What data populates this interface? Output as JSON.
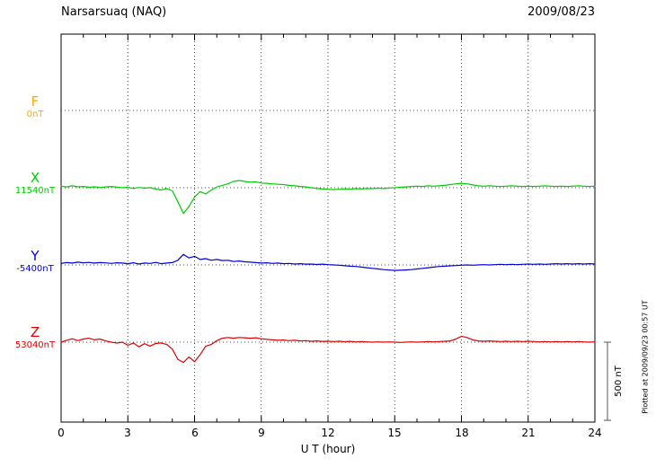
{
  "header": {
    "station": "Narsarsuaq (NAQ)",
    "date": "2009/08/23"
  },
  "channels": [
    {
      "letter": "F",
      "baseline_label": "0nT",
      "color": "#FFA500"
    },
    {
      "letter": "X",
      "baseline_label": "11540nT",
      "color": "#00CC00"
    },
    {
      "letter": "Y",
      "baseline_label": "-5400nT",
      "color": "#0000DD"
    },
    {
      "letter": "Z",
      "baseline_label": "53040nT",
      "color": "#DD0000"
    }
  ],
  "xaxis": {
    "label": "U T (hour)",
    "ticks": [
      0,
      3,
      6,
      9,
      12,
      15,
      18,
      21,
      24
    ],
    "min": 0,
    "max": 24
  },
  "scale_bar": {
    "label": "500 nT",
    "value_nT": 500
  },
  "note": {
    "text": "Plotted at 2009/09/23 00:57 UT"
  },
  "chart_data": {
    "type": "line",
    "title": "Narsarsuaq (NAQ) magnetogram 2009/08/23",
    "xlabel": "U T (hour)",
    "x_range": [
      0,
      24
    ],
    "x_step_hours": 0.25,
    "grid": "dotted vertical every 3 h, dotted horizontal at each channel baseline",
    "scale_nT_per_division": 500,
    "series": [
      {
        "name": "F",
        "baseline_nT": 0,
        "color": "#FFA500",
        "offsets_nT": []
      },
      {
        "name": "X",
        "baseline_nT": 11540,
        "color": "#00CC00",
        "offsets_nT": [
          10,
          5,
          12,
          6,
          8,
          3,
          6,
          2,
          5,
          8,
          4,
          0,
          3,
          -5,
          2,
          -3,
          0,
          -8,
          -15,
          -6,
          -20,
          -90,
          -165,
          -120,
          -60,
          -25,
          -40,
          -15,
          5,
          15,
          25,
          40,
          46,
          40,
          35,
          38,
          30,
          28,
          25,
          22,
          20,
          15,
          12,
          8,
          5,
          0,
          -5,
          -8,
          -10,
          -12,
          -10,
          -8,
          -10,
          -6,
          -8,
          -5,
          -6,
          -3,
          -5,
          -2,
          0,
          3,
          5,
          8,
          10,
          8,
          12,
          10,
          12,
          15,
          20,
          25,
          28,
          25,
          18,
          12,
          10,
          12,
          10,
          8,
          10,
          12,
          10,
          8,
          10,
          8,
          10,
          12,
          10,
          8,
          10,
          8,
          10,
          12,
          10,
          8,
          10
        ]
      },
      {
        "name": "Y",
        "baseline_nT": -5400,
        "color": "#0000DD",
        "offsets_nT": [
          10,
          15,
          12,
          18,
          14,
          16,
          12,
          15,
          13,
          10,
          14,
          12,
          8,
          14,
          6,
          12,
          10,
          16,
          8,
          12,
          15,
          30,
          68,
          45,
          55,
          35,
          40,
          30,
          35,
          28,
          30,
          22,
          25,
          20,
          18,
          15,
          12,
          14,
          10,
          12,
          8,
          10,
          6,
          8,
          5,
          6,
          3,
          5,
          2,
          0,
          -2,
          -5,
          -8,
          -10,
          -14,
          -18,
          -22,
          -26,
          -30,
          -33,
          -35,
          -34,
          -32,
          -30,
          -26,
          -22,
          -18,
          -14,
          -10,
          -8,
          -6,
          -4,
          -2,
          0,
          -2,
          0,
          2,
          0,
          2,
          4,
          2,
          4,
          2,
          4,
          6,
          4,
          6,
          4,
          6,
          8,
          6,
          8,
          6,
          8,
          6,
          8,
          6
        ]
      },
      {
        "name": "Z",
        "baseline_nT": 53040,
        "color": "#DD0000",
        "offsets_nT": [
          0,
          12,
          22,
          10,
          20,
          25,
          15,
          20,
          8,
          0,
          -6,
          0,
          -20,
          -5,
          -30,
          -10,
          -25,
          -8,
          -5,
          -15,
          -45,
          -110,
          -130,
          -95,
          -125,
          -80,
          -25,
          -15,
          10,
          25,
          30,
          25,
          30,
          28,
          25,
          28,
          22,
          18,
          15,
          12,
          14,
          10,
          12,
          8,
          10,
          6,
          8,
          5,
          6,
          4,
          6,
          3,
          5,
          2,
          4,
          2,
          0,
          2,
          0,
          2,
          0,
          -2,
          0,
          2,
          0,
          2,
          4,
          2,
          4,
          6,
          8,
          20,
          38,
          30,
          15,
          8,
          6,
          8,
          6,
          4,
          6,
          4,
          6,
          4,
          6,
          4,
          2,
          4,
          2,
          4,
          2,
          4,
          2,
          4,
          2,
          0,
          2
        ]
      }
    ]
  }
}
